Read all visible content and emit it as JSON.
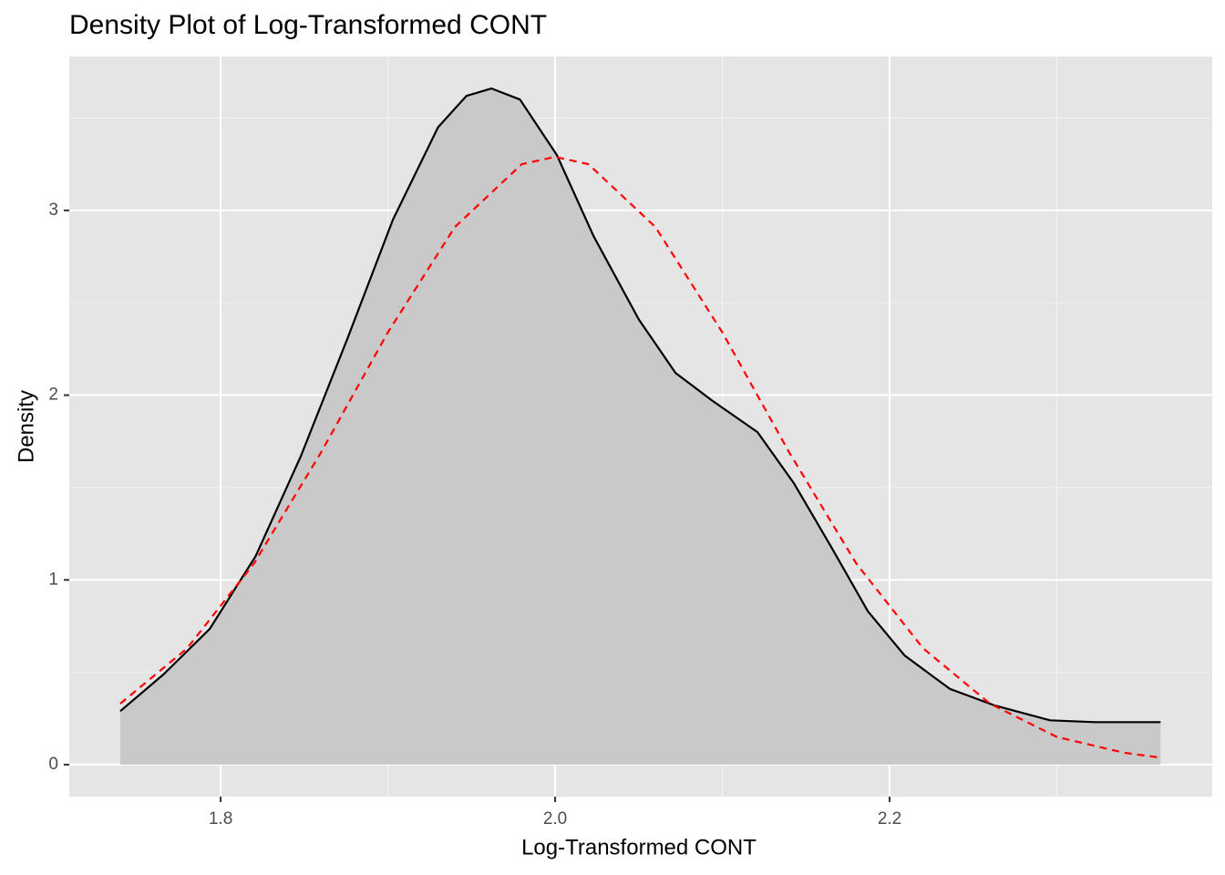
{
  "chart_data": {
    "type": "density",
    "title": "Density Plot of Log-Transformed CONT",
    "xlabel": "Log-Transformed CONT",
    "ylabel": "Density",
    "xlim": [
      1.7095,
      2.3929
    ],
    "ylim": [
      -0.173,
      3.833
    ],
    "xticks": [
      1.8,
      {
        "value": 2,
        "label": "2.0"
      },
      2.2
    ],
    "yticks": [
      0,
      1,
      2,
      3
    ],
    "xminor": [
      1.9,
      2.1,
      2.3
    ],
    "yminor": [
      0.5,
      1.5,
      2.5,
      3.5
    ],
    "grid": true,
    "series": [
      {
        "color": "#000000",
        "fill": "#c9c9c9",
        "dashed": false,
        "x": [
          1.74,
          1.766,
          1.7935,
          1.821,
          1.848,
          1.876,
          1.903,
          1.93,
          1.947,
          1.962,
          1.979,
          2.001,
          2.023,
          2.05,
          2.072,
          2.094,
          2.121,
          2.143,
          2.165,
          2.187,
          2.209,
          2.236,
          2.263,
          2.296,
          2.323,
          2.345,
          2.362
        ],
        "values": [
          0.29,
          0.49,
          0.735,
          1.13,
          1.67,
          2.31,
          2.95,
          3.45,
          3.62,
          3.66,
          3.6,
          3.3,
          2.86,
          2.41,
          2.12,
          1.97,
          1.8,
          1.52,
          1.18,
          0.83,
          0.59,
          0.41,
          0.32,
          0.24,
          0.23,
          0.23,
          0.23
        ]
      },
      {
        "color": "#ff0000",
        "dashed": true,
        "x": [
          1.74,
          1.78,
          1.82,
          1.86,
          1.9,
          1.94,
          1.98,
          2.0,
          2.02,
          2.06,
          2.1,
          2.14,
          2.18,
          2.22,
          2.26,
          2.3,
          2.34,
          2.36
        ],
        "values": [
          0.33,
          0.63,
          1.09,
          1.69,
          2.34,
          2.91,
          3.25,
          3.29,
          3.25,
          2.91,
          2.34,
          1.69,
          1.09,
          0.63,
          0.33,
          0.15,
          0.065,
          0.04
        ]
      }
    ]
  }
}
